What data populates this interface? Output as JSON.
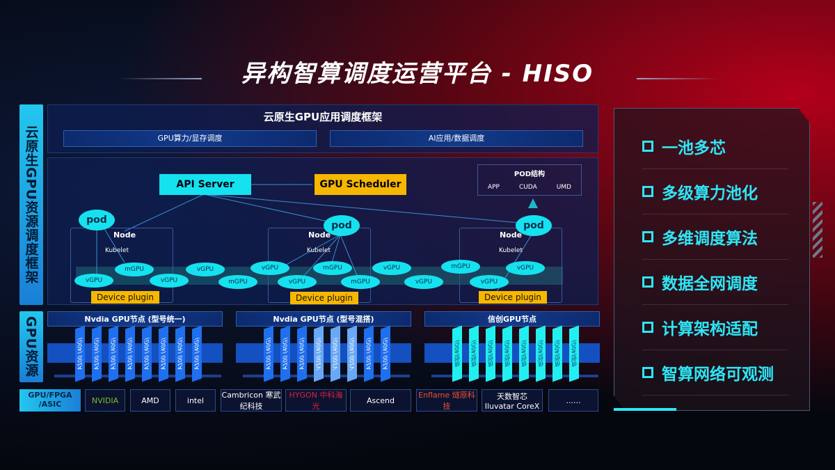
{
  "title": "异构智算调度运营平台 - HISO",
  "left_labels": {
    "framework": "云原生GPU资源调度框架",
    "resources": "GPU资源"
  },
  "framework": {
    "title": "云原生GPU应用调度框架",
    "bars": [
      "GPU算力/显存调度",
      "AI应用/数据调度"
    ],
    "api_server": "API Server",
    "gpu_scheduler": "GPU Scheduler",
    "pod_struct": {
      "title": "POD结构",
      "items": [
        "APP",
        "CUDA",
        "UMD"
      ]
    },
    "pod": "pod",
    "node": "Node",
    "kubelet": "Kubelet",
    "device_plugin": "Device plugin",
    "vgpu": "vGPU",
    "mgpu": "mGPU"
  },
  "gpu_nodes": [
    {
      "title": "Nvdia GPU节点 (型号统一)",
      "chips": [
        "A100 (40G)",
        "A100 (40G)",
        "A100 (40G)",
        "A100 (40G)",
        "A100 (40G)",
        "A100 (40G)",
        "A100 (40G)",
        "A100 (40G)"
      ]
    },
    {
      "title": "Nvdia GPU节点 (型号混搭)",
      "chips": [
        "A100 (40G)",
        "A100 (40G)",
        "A100 (40G)",
        "V100 (40G)",
        "V100 (40G)",
        "V100 (40G)",
        "A100 (40G)",
        "A100 (40G)"
      ]
    },
    {
      "title": "信创GPU节点",
      "chips": [
        "信创(40G)",
        "信创(40G)",
        "信创(40G)",
        "信创(40G)",
        "信创(40G)",
        "信创(40G)",
        "信创(40G)",
        "信创(40G)"
      ]
    }
  ],
  "vendors": {
    "label": "GPU/FPGA /ASIC",
    "items": [
      "NVIDIA",
      "AMD",
      "intel",
      "Cambricon 寒武纪科技",
      "HYGON 中科海光",
      "Ascend",
      "Enflame 燧原科技",
      "天数智芯 Iluvatar CoreX",
      "......"
    ]
  },
  "features": [
    "一池多芯",
    "多级算力池化",
    "多维调度算法",
    "数据全网调度",
    "计算架构适配",
    "智算网络可观测"
  ],
  "colors": {
    "cyan": "#16e1ef",
    "gold": "#f5b700",
    "blue": "#1a6fe0",
    "red": "#b3001a"
  }
}
